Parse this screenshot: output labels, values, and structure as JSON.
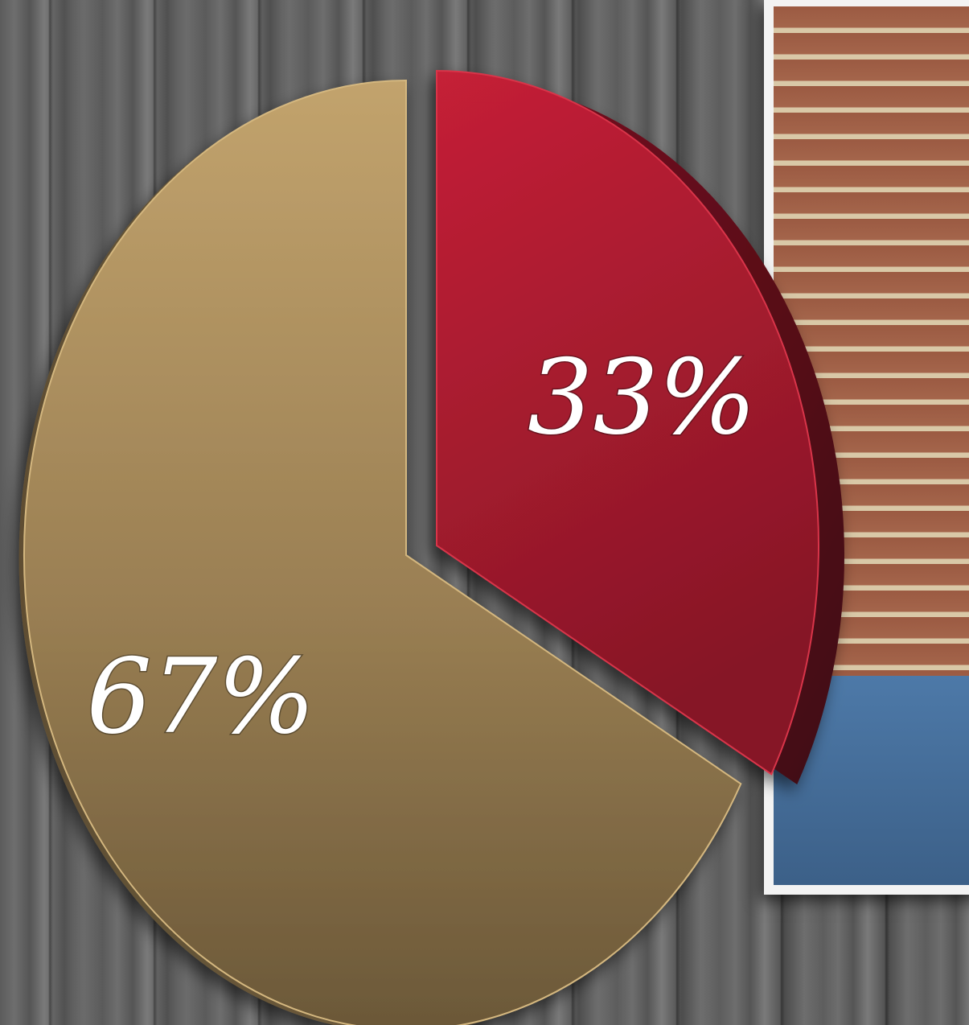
{
  "chart_data": {
    "type": "pie",
    "title": "",
    "slices": [
      {
        "value": 33,
        "label": "33%",
        "color": "#b31e32"
      },
      {
        "value": 67,
        "label": "67%",
        "color": "#a88b5c"
      }
    ],
    "start_angle_deg": 0,
    "direction": "clockwise",
    "exploded_slice": 0,
    "legend": "none"
  }
}
